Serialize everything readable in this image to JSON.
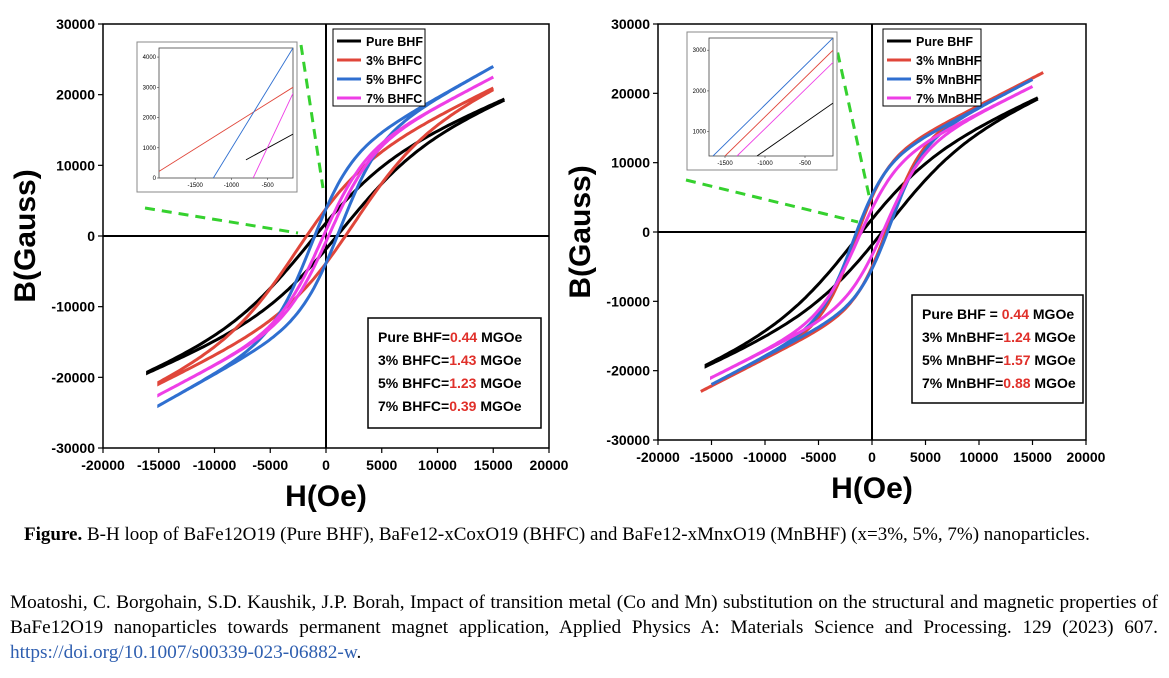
{
  "chart_data": [
    {
      "type": "line",
      "xlabel": "H(Oe)",
      "ylabel": "B(Gauss)",
      "xlim": [
        -20000,
        20000
      ],
      "ylim": [
        -30000,
        30000
      ],
      "xticks": [
        "-20000",
        "-15000",
        "-10000",
        "-5000",
        "0",
        "5000",
        "10000",
        "15000",
        "20000"
      ],
      "yticks": [
        "30000",
        "20000",
        "10000",
        "0",
        "-10000",
        "-20000",
        "-30000"
      ],
      "series": [
        {
          "name": "Pure BHF",
          "color": "#000000",
          "hmax": 16000,
          "sat": 19500,
          "hc": 1500,
          "br": 1500,
          "kink": 7000
        },
        {
          "name": "3% BHFC",
          "color": "#e0463a",
          "hmax": 15000,
          "sat": 21000,
          "hc": 2600,
          "br": 2200,
          "kink": 6000
        },
        {
          "name": "5% BHFC",
          "color": "#2f6fd0",
          "hmax": 15000,
          "sat": 24000,
          "hc": 1300,
          "br": 4200,
          "kink": 3500
        },
        {
          "name": "7% BHFC",
          "color": "#ee3ee6",
          "hmax": 15000,
          "sat": 22500,
          "hc": 300,
          "br": 3000,
          "kink": 3800
        }
      ],
      "energy_box": [
        {
          "label": "Pure BHF=",
          "value": "0.44",
          "unit": " MGOe"
        },
        {
          "label": "3% BHFC=",
          "value": "1.43",
          "unit": " MGOe"
        },
        {
          "label": "5% BHFC=",
          "value": "1.23",
          "unit": " MGOe"
        },
        {
          "label": "7% BHFC=",
          "value": "0.39",
          "unit": " MGOe"
        }
      ],
      "inset": {
        "xticks": [
          "-1500",
          "-1000",
          "-500"
        ],
        "yticks": [
          "0",
          "1000",
          "2000",
          "3000",
          "4000"
        ],
        "xlim": [
          -2000,
          -150
        ],
        "ylim": [
          0,
          4300
        ]
      }
    },
    {
      "type": "line",
      "xlabel": "H(Oe)",
      "ylabel": "B(Gauss)",
      "xlim": [
        -20000,
        20000
      ],
      "ylim": [
        -30000,
        30000
      ],
      "xticks": [
        "-20000",
        "-15000",
        "-10000",
        "-5000",
        "0",
        "5000",
        "10000",
        "15000",
        "20000"
      ],
      "yticks": [
        "30000",
        "20000",
        "10000",
        "0",
        "-10000",
        "-20000",
        "-30000"
      ],
      "series": [
        {
          "name": "Pure BHF",
          "color": "#000000",
          "hmax": 15500,
          "sat": 19500,
          "hc": 1500,
          "br": 1500,
          "kink": 7000
        },
        {
          "name": "3% MnBHF",
          "color": "#e0463a",
          "hmax": 16000,
          "sat": 23000,
          "hc": 1600,
          "br": 2900,
          "kink": 3000
        },
        {
          "name": "5% MnBHF",
          "color": "#2f6fd0",
          "hmax": 15000,
          "sat": 22000,
          "hc": 1800,
          "br": 3800,
          "kink": 3000
        },
        {
          "name": "7% MnBHF",
          "color": "#ee3ee6",
          "hmax": 15000,
          "sat": 21000,
          "hc": 1300,
          "br": 3100,
          "kink": 3500
        }
      ],
      "energy_box": [
        {
          "label": "Pure BHF = ",
          "value": "0.44",
          "unit": " MGOe"
        },
        {
          "label": "3% MnBHF=",
          "value": "1.24",
          "unit": " MGOe"
        },
        {
          "label": "5% MnBHF=",
          "value": "1.57",
          "unit": " MGOe"
        },
        {
          "label": "7% MnBHF=",
          "value": "0.88",
          "unit": " MGOe"
        }
      ],
      "inset": {
        "xticks": [
          "-1500",
          "-1000",
          "-500"
        ],
        "yticks": [
          "1000",
          "2000",
          "3000"
        ],
        "xlim": [
          -1700,
          -150
        ],
        "ylim": [
          400,
          3300
        ]
      }
    }
  ],
  "caption": {
    "label": "Figure.",
    "text": " B-H loop of BaFe12O19 (Pure BHF), BaFe12-xCoxO19 (BHFC) and BaFe12-xMnxO19 (MnBHF) (x=3%, 5%, 7%) nanoparticles."
  },
  "reference": {
    "text": "Moatoshi, C. Borgohain, S.D. Kaushik, J.P. Borah, Impact of transition metal (Co and Mn) substitution on the structural and magnetic properties of BaFe12O19 nanoparticles towards permanent magnet application, Applied Physics A: Materials Science and Processing. 129 (2023) 607. ",
    "link": "https://doi.org/10.1007/s00339-023-06882-w",
    "end": "."
  }
}
